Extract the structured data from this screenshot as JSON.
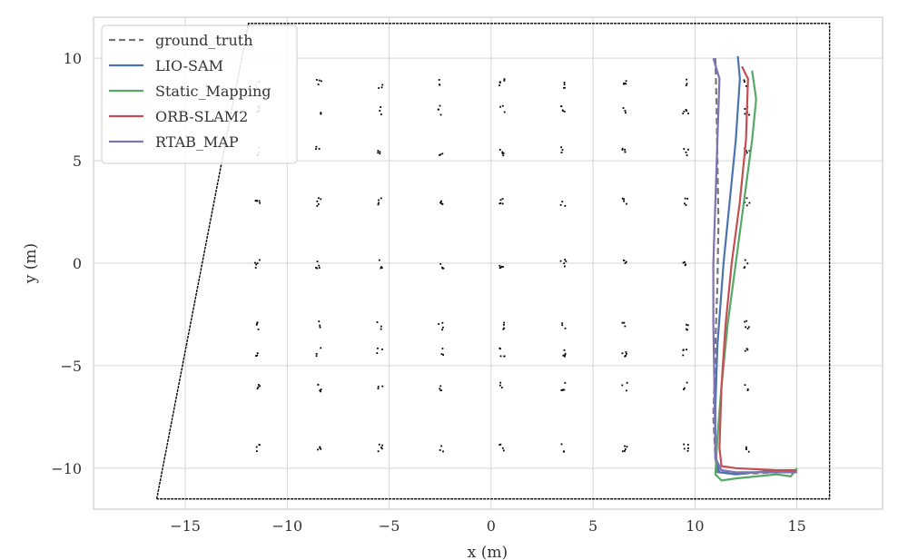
{
  "chart_data": {
    "type": "line",
    "xlabel": "x (m)",
    "ylabel": "y (m)",
    "xlim": [
      -19.5,
      19.2
    ],
    "ylim": [
      -12.0,
      12.0
    ],
    "xticks": [
      -15,
      -10,
      -5,
      0,
      5,
      10,
      15
    ],
    "xtick_labels": [
      "−15",
      "−10",
      "−5",
      "0",
      "5",
      "10",
      "15"
    ],
    "yticks": [
      -10,
      -5,
      0,
      5,
      10
    ],
    "ytick_labels": [
      "−10",
      "−5",
      "0",
      "5",
      "10"
    ],
    "grid": true,
    "legend_position": "top-left",
    "background_map": {
      "description_color": "#000000",
      "map_boundary": [
        [
          -16.4,
          -11.5
        ],
        [
          -11.9,
          11.7
        ],
        [
          16.6,
          11.7
        ],
        [
          16.6,
          -11.5
        ],
        [
          -16.4,
          -11.5
        ]
      ],
      "pillar_columns_x": [
        -11.5,
        -8.5,
        -5.5,
        -2.5,
        0.5,
        3.5,
        6.5,
        9.5,
        12.5
      ],
      "pillar_rows_y": [
        8.8,
        7.5,
        5.5,
        3.0,
        0.0,
        -3.0,
        -4.3,
        -6.0,
        -9.0
      ]
    },
    "series": [
      {
        "name": "ground_truth",
        "color": "#777777",
        "dash": "dashed",
        "x": [
          11.0,
          11.05,
          11.1,
          11.15,
          11.1,
          11.0,
          10.95,
          10.9,
          11.0,
          11.1,
          12.0,
          13.0,
          14.0,
          15.0
        ],
        "y": [
          10.0,
          8.0,
          5.0,
          2.0,
          -1.0,
          -4.0,
          -6.0,
          -7.5,
          -9.5,
          -10.2,
          -10.25,
          -10.25,
          -10.2,
          -10.2
        ]
      },
      {
        "name": "LIO-SAM",
        "color": "#4c72b0",
        "dash": "solid",
        "x": [
          12.1,
          12.2,
          12.0,
          11.7,
          11.4,
          11.1,
          11.0,
          11.0,
          11.2,
          12.0,
          13.0,
          14.0,
          15.0
        ],
        "y": [
          10.1,
          9.0,
          6.0,
          3.0,
          0.0,
          -4.0,
          -7.0,
          -9.5,
          -10.2,
          -10.3,
          -10.2,
          -10.1,
          -10.1
        ]
      },
      {
        "name": "Static_Mapping",
        "color": "#55a868",
        "dash": "solid",
        "x": [
          12.8,
          13.0,
          12.8,
          12.4,
          12.0,
          11.6,
          11.3,
          11.1,
          11.0,
          11.3,
          12.0,
          13.0,
          14.0,
          14.7,
          15.0
        ],
        "y": [
          9.4,
          8.0,
          6.0,
          3.0,
          0.0,
          -3.0,
          -6.0,
          -8.5,
          -10.3,
          -10.6,
          -10.5,
          -10.4,
          -10.3,
          -10.4,
          -10.0
        ]
      },
      {
        "name": "ORB-SLAM2",
        "color": "#c44e52",
        "dash": "solid",
        "x": [
          12.3,
          12.6,
          12.5,
          12.2,
          11.8,
          11.5,
          11.3,
          11.2,
          11.3,
          12.0,
          13.0,
          14.0,
          15.0
        ],
        "y": [
          9.6,
          9.0,
          6.0,
          3.0,
          0.0,
          -3.0,
          -6.0,
          -9.0,
          -9.9,
          -10.0,
          -10.05,
          -10.1,
          -10.15
        ]
      },
      {
        "name": "RTAB_MAP",
        "color": "#8172b2",
        "dash": "solid",
        "x": [
          10.9,
          11.2,
          11.1,
          11.0,
          10.9,
          10.9,
          10.95,
          11.0,
          11.3,
          12.0,
          13.0,
          14.0,
          15.0
        ],
        "y": [
          10.0,
          9.0,
          6.0,
          3.0,
          0.0,
          -3.0,
          -6.0,
          -9.5,
          -10.1,
          -10.2,
          -10.2,
          -10.2,
          -10.2
        ]
      }
    ]
  }
}
